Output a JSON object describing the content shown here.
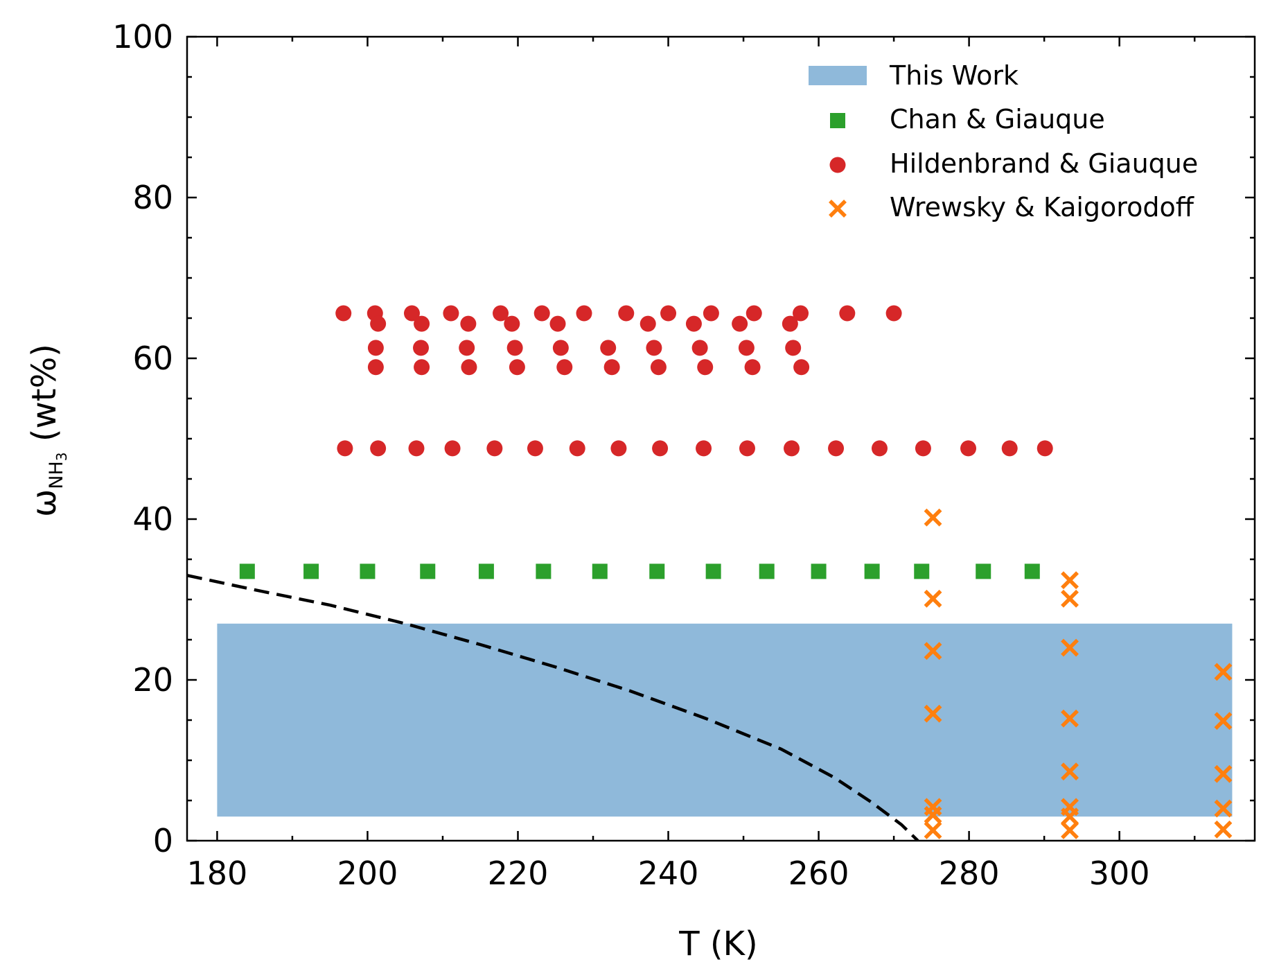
{
  "chart_data": {
    "type": "scatter",
    "xlabel": "T (K)",
    "ylabel": {
      "symbol": "ω",
      "subscript_main": "NH",
      "subscript_small": "3",
      "unit": " (wt%)"
    },
    "xlim": [
      176,
      318
    ],
    "ylim": [
      0,
      100
    ],
    "xticks": [
      180,
      200,
      220,
      240,
      260,
      280,
      300
    ],
    "yticks": [
      0,
      20,
      40,
      60,
      80,
      100
    ],
    "legend_position": "top-right",
    "colors": {
      "band": "#8fb9da",
      "chan": "#2ca02c",
      "hildenbrand": "#d62728",
      "wrewsky": "#ff7f0e",
      "curve": "#000000"
    },
    "band": {
      "name": "This Work",
      "x": [
        180,
        315
      ],
      "y": [
        3,
        27
      ]
    },
    "series": [
      {
        "name": "Chan & Giauque",
        "marker": "square",
        "points": [
          [
            184,
            33.5
          ],
          [
            192.5,
            33.5
          ],
          [
            200,
            33.5
          ],
          [
            208,
            33.5
          ],
          [
            215.8,
            33.5
          ],
          [
            223.4,
            33.5
          ],
          [
            230.9,
            33.5
          ],
          [
            238.5,
            33.5
          ],
          [
            246,
            33.5
          ],
          [
            253.1,
            33.5
          ],
          [
            260,
            33.5
          ],
          [
            267.1,
            33.5
          ],
          [
            273.7,
            33.5
          ],
          [
            281.9,
            33.5
          ],
          [
            288.4,
            33.5
          ]
        ]
      },
      {
        "name": "Hildenbrand & Giauque",
        "marker": "circle",
        "points": [
          [
            196.8,
            65.6
          ],
          [
            201,
            65.6
          ],
          [
            205.9,
            65.6
          ],
          [
            211.1,
            65.6
          ],
          [
            217.7,
            65.6
          ],
          [
            223.2,
            65.6
          ],
          [
            228.8,
            65.6
          ],
          [
            234.4,
            65.6
          ],
          [
            240,
            65.6
          ],
          [
            245.7,
            65.6
          ],
          [
            251.4,
            65.6
          ],
          [
            257.6,
            65.6
          ],
          [
            263.8,
            65.6
          ],
          [
            270,
            65.6
          ],
          [
            201.4,
            64.3
          ],
          [
            207.2,
            64.3
          ],
          [
            213.4,
            64.3
          ],
          [
            219.2,
            64.3
          ],
          [
            225.3,
            64.3
          ],
          [
            237.3,
            64.3
          ],
          [
            243.4,
            64.3
          ],
          [
            249.5,
            64.3
          ],
          [
            256.2,
            64.3
          ],
          [
            201.1,
            61.3
          ],
          [
            207.1,
            61.3
          ],
          [
            213.2,
            61.3
          ],
          [
            219.6,
            61.3
          ],
          [
            225.7,
            61.3
          ],
          [
            232,
            61.3
          ],
          [
            238.1,
            61.3
          ],
          [
            244.2,
            61.3
          ],
          [
            250.4,
            61.3
          ],
          [
            256.6,
            61.3
          ],
          [
            201.1,
            58.9
          ],
          [
            207.2,
            58.9
          ],
          [
            213.5,
            58.9
          ],
          [
            219.9,
            58.9
          ],
          [
            226.2,
            58.9
          ],
          [
            232.5,
            58.9
          ],
          [
            238.7,
            58.9
          ],
          [
            244.9,
            58.9
          ],
          [
            251.2,
            58.9
          ],
          [
            257.7,
            58.9
          ],
          [
            197,
            48.8
          ],
          [
            201.4,
            48.8
          ],
          [
            206.5,
            48.8
          ],
          [
            211.3,
            48.8
          ],
          [
            216.9,
            48.8
          ],
          [
            222.3,
            48.8
          ],
          [
            227.9,
            48.8
          ],
          [
            233.4,
            48.8
          ],
          [
            238.9,
            48.8
          ],
          [
            244.7,
            48.8
          ],
          [
            250.5,
            48.8
          ],
          [
            256.4,
            48.8
          ],
          [
            262.3,
            48.8
          ],
          [
            268.1,
            48.8
          ],
          [
            273.9,
            48.8
          ],
          [
            279.9,
            48.8
          ],
          [
            285.4,
            48.8
          ],
          [
            290.1,
            48.8
          ]
        ]
      },
      {
        "name": "Wrewsky & Kaigorodoff",
        "marker": "x",
        "points": [
          [
            275.2,
            40.2
          ],
          [
            275.2,
            30.1
          ],
          [
            275.2,
            23.6
          ],
          [
            275.2,
            15.8
          ],
          [
            275.2,
            4.2
          ],
          [
            275.2,
            3.2
          ],
          [
            275.2,
            1.3
          ],
          [
            293.4,
            32.4
          ],
          [
            293.4,
            30.1
          ],
          [
            293.4,
            24
          ],
          [
            293.4,
            15.2
          ],
          [
            293.4,
            8.6
          ],
          [
            293.4,
            4.2
          ],
          [
            293.4,
            3
          ],
          [
            293.4,
            1.3
          ],
          [
            313.8,
            21
          ],
          [
            313.8,
            14.9
          ],
          [
            313.8,
            8.3
          ],
          [
            313.8,
            4
          ],
          [
            313.8,
            1.4
          ]
        ]
      }
    ],
    "curve": {
      "style": "dashed",
      "points": [
        [
          176,
          33
        ],
        [
          185,
          31.2
        ],
        [
          195,
          29.3
        ],
        [
          205,
          27
        ],
        [
          215,
          24.4
        ],
        [
          225,
          21.6
        ],
        [
          235,
          18.6
        ],
        [
          245,
          15.2
        ],
        [
          255,
          11.4
        ],
        [
          262,
          7.9
        ],
        [
          267,
          4.8
        ],
        [
          271,
          2
        ],
        [
          273.2,
          0
        ]
      ]
    }
  }
}
